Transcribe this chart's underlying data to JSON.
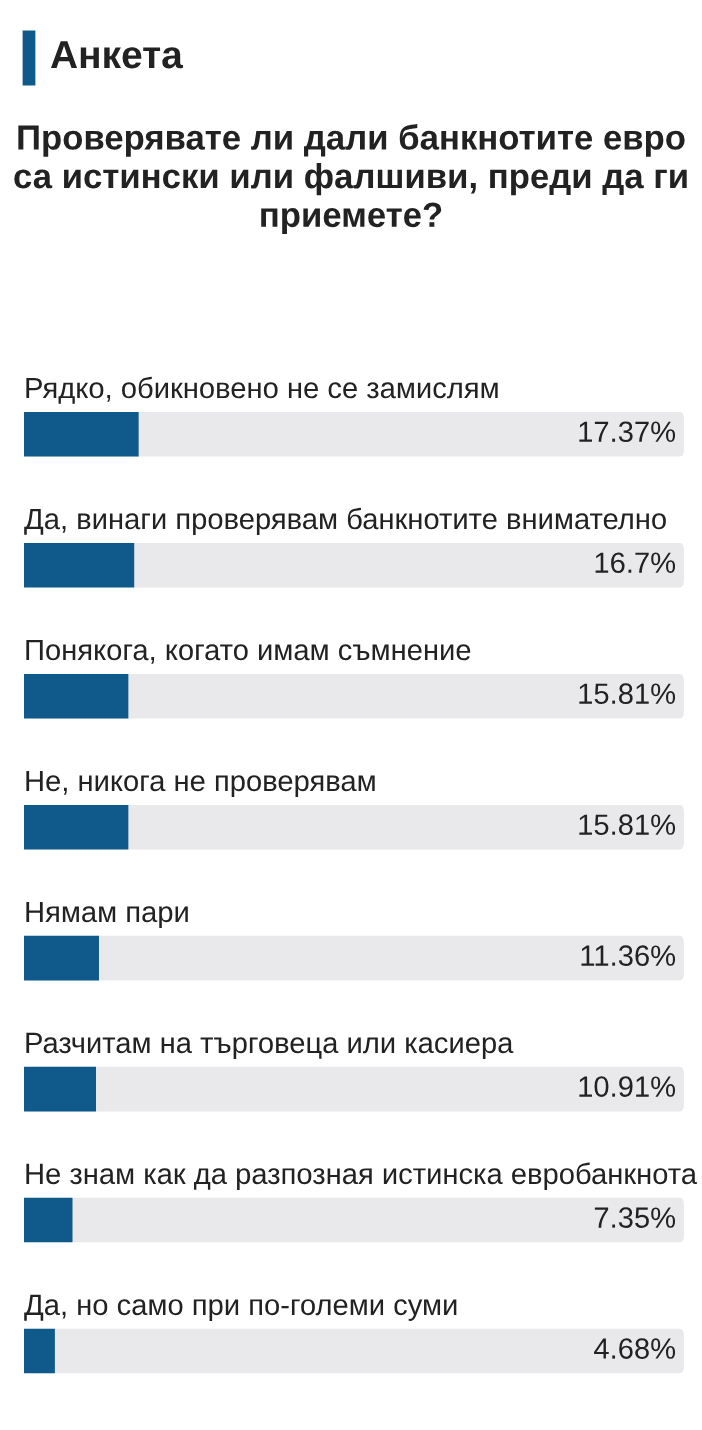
{
  "chart_data": {
    "type": "bar",
    "orientation": "horizontal",
    "title": "Анкета",
    "subtitle": "Проверявате ли дали банкнотите евро са истински или фалшиви, преди да ги приемете?",
    "categories": [
      "Рядко, обикновено не се замислям",
      "Да, винаги проверявам банкнотите внимателно",
      "Понякога, когато имам съмнение",
      "Не, никога не проверявам",
      "Нямам пари",
      "Разчитам на търговеца или касиера",
      "Не знам как да разпозная истинска евробанкнота",
      "Да, но само при по-големи суми"
    ],
    "values": [
      17.37,
      16.7,
      15.81,
      15.81,
      11.36,
      10.91,
      7.35,
      4.68
    ],
    "value_labels": [
      "17.37%",
      "16.7%",
      "15.81%",
      "15.81%",
      "11.36%",
      "10.91%",
      "7.35%",
      "4.68%"
    ],
    "color": "#0f5a8a",
    "xlim": [
      0,
      100
    ],
    "tick_labels": false
  }
}
